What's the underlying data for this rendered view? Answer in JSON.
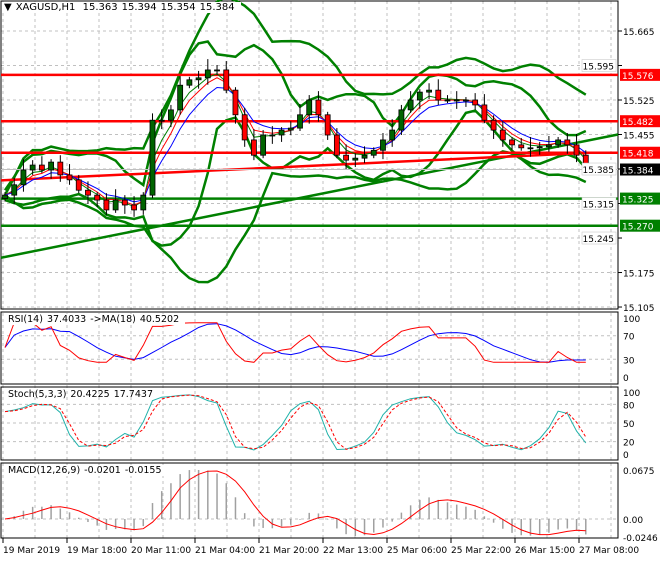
{
  "header": {
    "symbol": "XAGUSD,H1",
    "open": "15.363",
    "high": "15.394",
    "low": "15.354",
    "close": "15.384",
    "menu_icon": "triangle-down-icon"
  },
  "colors": {
    "bull": "#006400",
    "bear": "#ff0000",
    "level_resistance": "#ff0000",
    "level_support": "#008000",
    "band": "#008000",
    "ma_fast": "#0000ff",
    "ma_mid": "#ff0000",
    "ma_slow": "#008000",
    "current_price_bg": "#000000"
  },
  "chart_data": [
    {
      "type": "candlestick",
      "symbol": "XAGUSD",
      "timeframe": "H1",
      "closes": [
        15.332,
        15.353,
        15.383,
        15.393,
        15.383,
        15.399,
        15.373,
        15.363,
        15.342,
        15.332,
        15.322,
        15.302,
        15.322,
        15.312,
        15.302,
        15.332,
        15.484,
        15.484,
        15.505,
        15.555,
        15.566,
        15.57,
        15.586,
        15.586,
        15.545,
        15.495,
        15.444,
        15.413,
        15.454,
        15.454,
        15.464,
        15.468,
        15.495,
        15.525,
        15.495,
        15.454,
        15.413,
        15.403,
        15.407,
        15.413,
        15.423,
        15.444,
        15.464,
        15.505,
        15.525,
        15.541,
        15.545,
        15.525,
        15.525,
        15.525,
        15.525,
        15.515,
        15.484,
        15.464,
        15.444,
        15.434,
        15.428,
        15.428,
        15.43,
        15.434,
        15.444,
        15.434,
        15.413,
        15.384
      ],
      "ylim": [
        15.09,
        15.7
      ],
      "y_ticks": [
        "15.665",
        "15.595",
        "15.525",
        "15.455",
        "15.385",
        "15.315",
        "15.245",
        "15.175",
        "15.105"
      ],
      "levels": [
        {
          "value": 15.576,
          "label": "15.576",
          "color": "#ff0000"
        },
        {
          "value": 15.482,
          "label": "15.482",
          "color": "#ff0000"
        },
        {
          "value": 15.418,
          "label": "15.418",
          "color": "#ff0000"
        },
        {
          "value": 15.325,
          "label": "15.325",
          "color": "#008000"
        },
        {
          "value": 15.27,
          "label": "15.270",
          "color": "#008000"
        }
      ],
      "current_price": {
        "value": 15.384,
        "label": "15.384"
      },
      "trendline": {
        "from": 15.205,
        "to": 15.455
      },
      "slow_ma": {
        "from": 15.362,
        "to": 15.418
      },
      "x_ticks": [
        "19 Mar 2019",
        "19 Mar 18:00",
        "20 Mar 11:00",
        "21 Mar 04:00",
        "21 Mar 20:00",
        "22 Mar 13:00",
        "25 Mar 06:00",
        "25 Mar 22:00",
        "26 Mar 15:00",
        "27 Mar 08:00"
      ],
      "grid": true
    },
    {
      "type": "line",
      "title": "RSI(14) 37.4033  ->MA(18) 40.5202",
      "name_main": "RSI(14)",
      "value_main": "37.4033",
      "name_ma": "->MA(18)",
      "value_ma": "40.5202",
      "ylim": [
        0,
        100
      ],
      "y_ticks": [
        "100",
        "70",
        "30",
        "0"
      ]
    },
    {
      "type": "line",
      "title": "Stoch(5,3,3) 20.4225 17.7437",
      "name": "Stoch(5,3,3)",
      "value_main": "20.4225",
      "value_signal": "17.7437",
      "ylim": [
        0,
        100
      ],
      "y_ticks": [
        "100",
        "80",
        "50",
        "20",
        "0"
      ]
    },
    {
      "type": "bar",
      "title": "MACD(12,26,9) -0.0201 -0.0155",
      "name": "MACD(12,26,9)",
      "value_main": "-0.0201",
      "value_signal": "-0.0155",
      "ylim": [
        -0.0246,
        0.0675
      ],
      "y_ticks": [
        "0.0675",
        "0.00",
        "-0.0246"
      ]
    }
  ]
}
